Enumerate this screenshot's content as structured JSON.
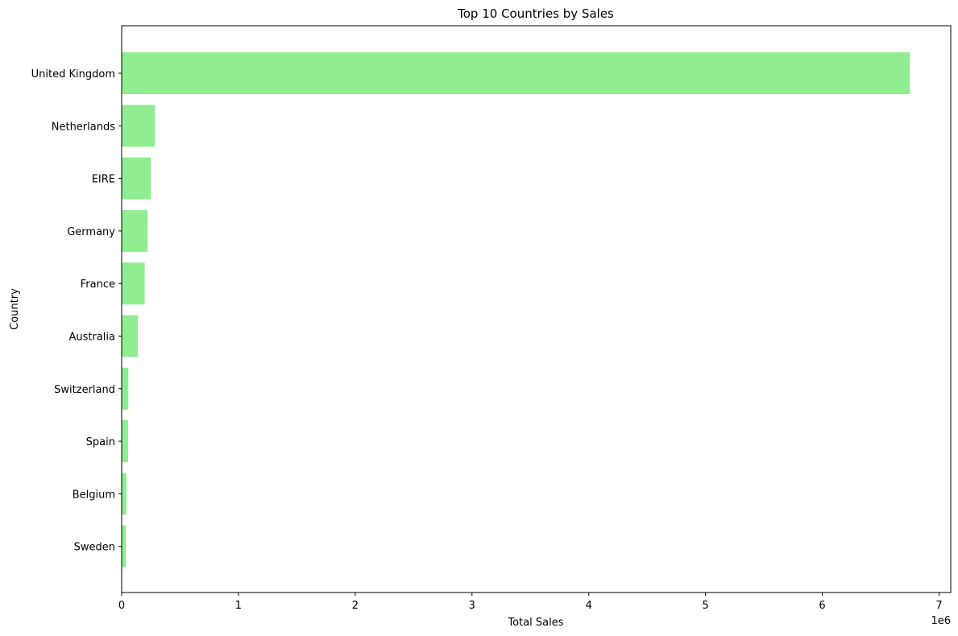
{
  "chart_data": {
    "type": "bar",
    "orientation": "horizontal",
    "title": "Top 10 Countries by Sales",
    "xlabel": "Total Sales",
    "ylabel": "Country",
    "x_offset_label": "1e6",
    "xlim": [
      0,
      7.1
    ],
    "xticks": [
      "0",
      "1",
      "2",
      "3",
      "4",
      "5",
      "6",
      "7"
    ],
    "categories": [
      "United Kingdom",
      "Netherlands",
      "EIRE",
      "Germany",
      "France",
      "Australia",
      "Switzerland",
      "Spain",
      "Belgium",
      "Sweden"
    ],
    "values": [
      6.75,
      0.285,
      0.25,
      0.222,
      0.197,
      0.138,
      0.057,
      0.055,
      0.041,
      0.037
    ],
    "value_unit_multiplier": 1000000,
    "bar_color": "#90ee90",
    "grid": false,
    "legend": false
  }
}
